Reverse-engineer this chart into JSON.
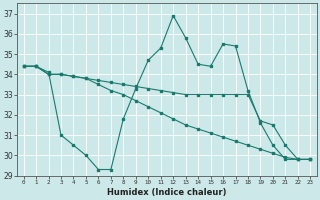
{
  "xlabel": "Humidex (Indice chaleur)",
  "bg_color": "#cce8e8",
  "grid_color": "#ffffff",
  "line_color": "#1a7a6e",
  "xlim": [
    -0.5,
    23.5
  ],
  "ylim": [
    29,
    37.5
  ],
  "yticks": [
    29,
    30,
    31,
    32,
    33,
    34,
    35,
    36,
    37
  ],
  "xticks": [
    0,
    1,
    2,
    3,
    4,
    5,
    6,
    7,
    8,
    9,
    10,
    11,
    12,
    13,
    14,
    15,
    16,
    17,
    18,
    19,
    20,
    21,
    22,
    23
  ],
  "series1_x": [
    0,
    1,
    2,
    3,
    4,
    5,
    6,
    7,
    8,
    9,
    10,
    11,
    12,
    13,
    14,
    15,
    16,
    17,
    18,
    19,
    20,
    21,
    22,
    23
  ],
  "series1_y": [
    34.4,
    34.4,
    34.1,
    31.0,
    30.5,
    30.0,
    29.3,
    29.3,
    31.8,
    33.3,
    34.7,
    35.3,
    36.9,
    35.8,
    34.5,
    34.4,
    35.5,
    35.4,
    33.2,
    31.6,
    30.5,
    29.8,
    29.8,
    29.8
  ],
  "series2_x": [
    0,
    1,
    2,
    3,
    4,
    5,
    6,
    7,
    8,
    9,
    10,
    11,
    12,
    13,
    14,
    15,
    16,
    17,
    18,
    19,
    20,
    21,
    22,
    23
  ],
  "series2_y": [
    34.4,
    34.4,
    34.0,
    34.0,
    33.9,
    33.8,
    33.7,
    33.6,
    33.5,
    33.4,
    33.3,
    33.2,
    33.1,
    33.0,
    33.0,
    33.0,
    33.0,
    33.0,
    33.0,
    31.7,
    31.5,
    30.5,
    29.8,
    29.8
  ],
  "series3_x": [
    0,
    1,
    2,
    3,
    4,
    5,
    6,
    7,
    8,
    9,
    10,
    11,
    12,
    13,
    14,
    15,
    16,
    17,
    18,
    19,
    20,
    21,
    22,
    23
  ],
  "series3_y": [
    34.4,
    34.4,
    34.0,
    34.0,
    33.9,
    33.8,
    33.5,
    33.2,
    33.0,
    32.7,
    32.4,
    32.1,
    31.8,
    31.5,
    31.3,
    31.1,
    30.9,
    30.7,
    30.5,
    30.3,
    30.1,
    29.9,
    29.8,
    29.8
  ]
}
